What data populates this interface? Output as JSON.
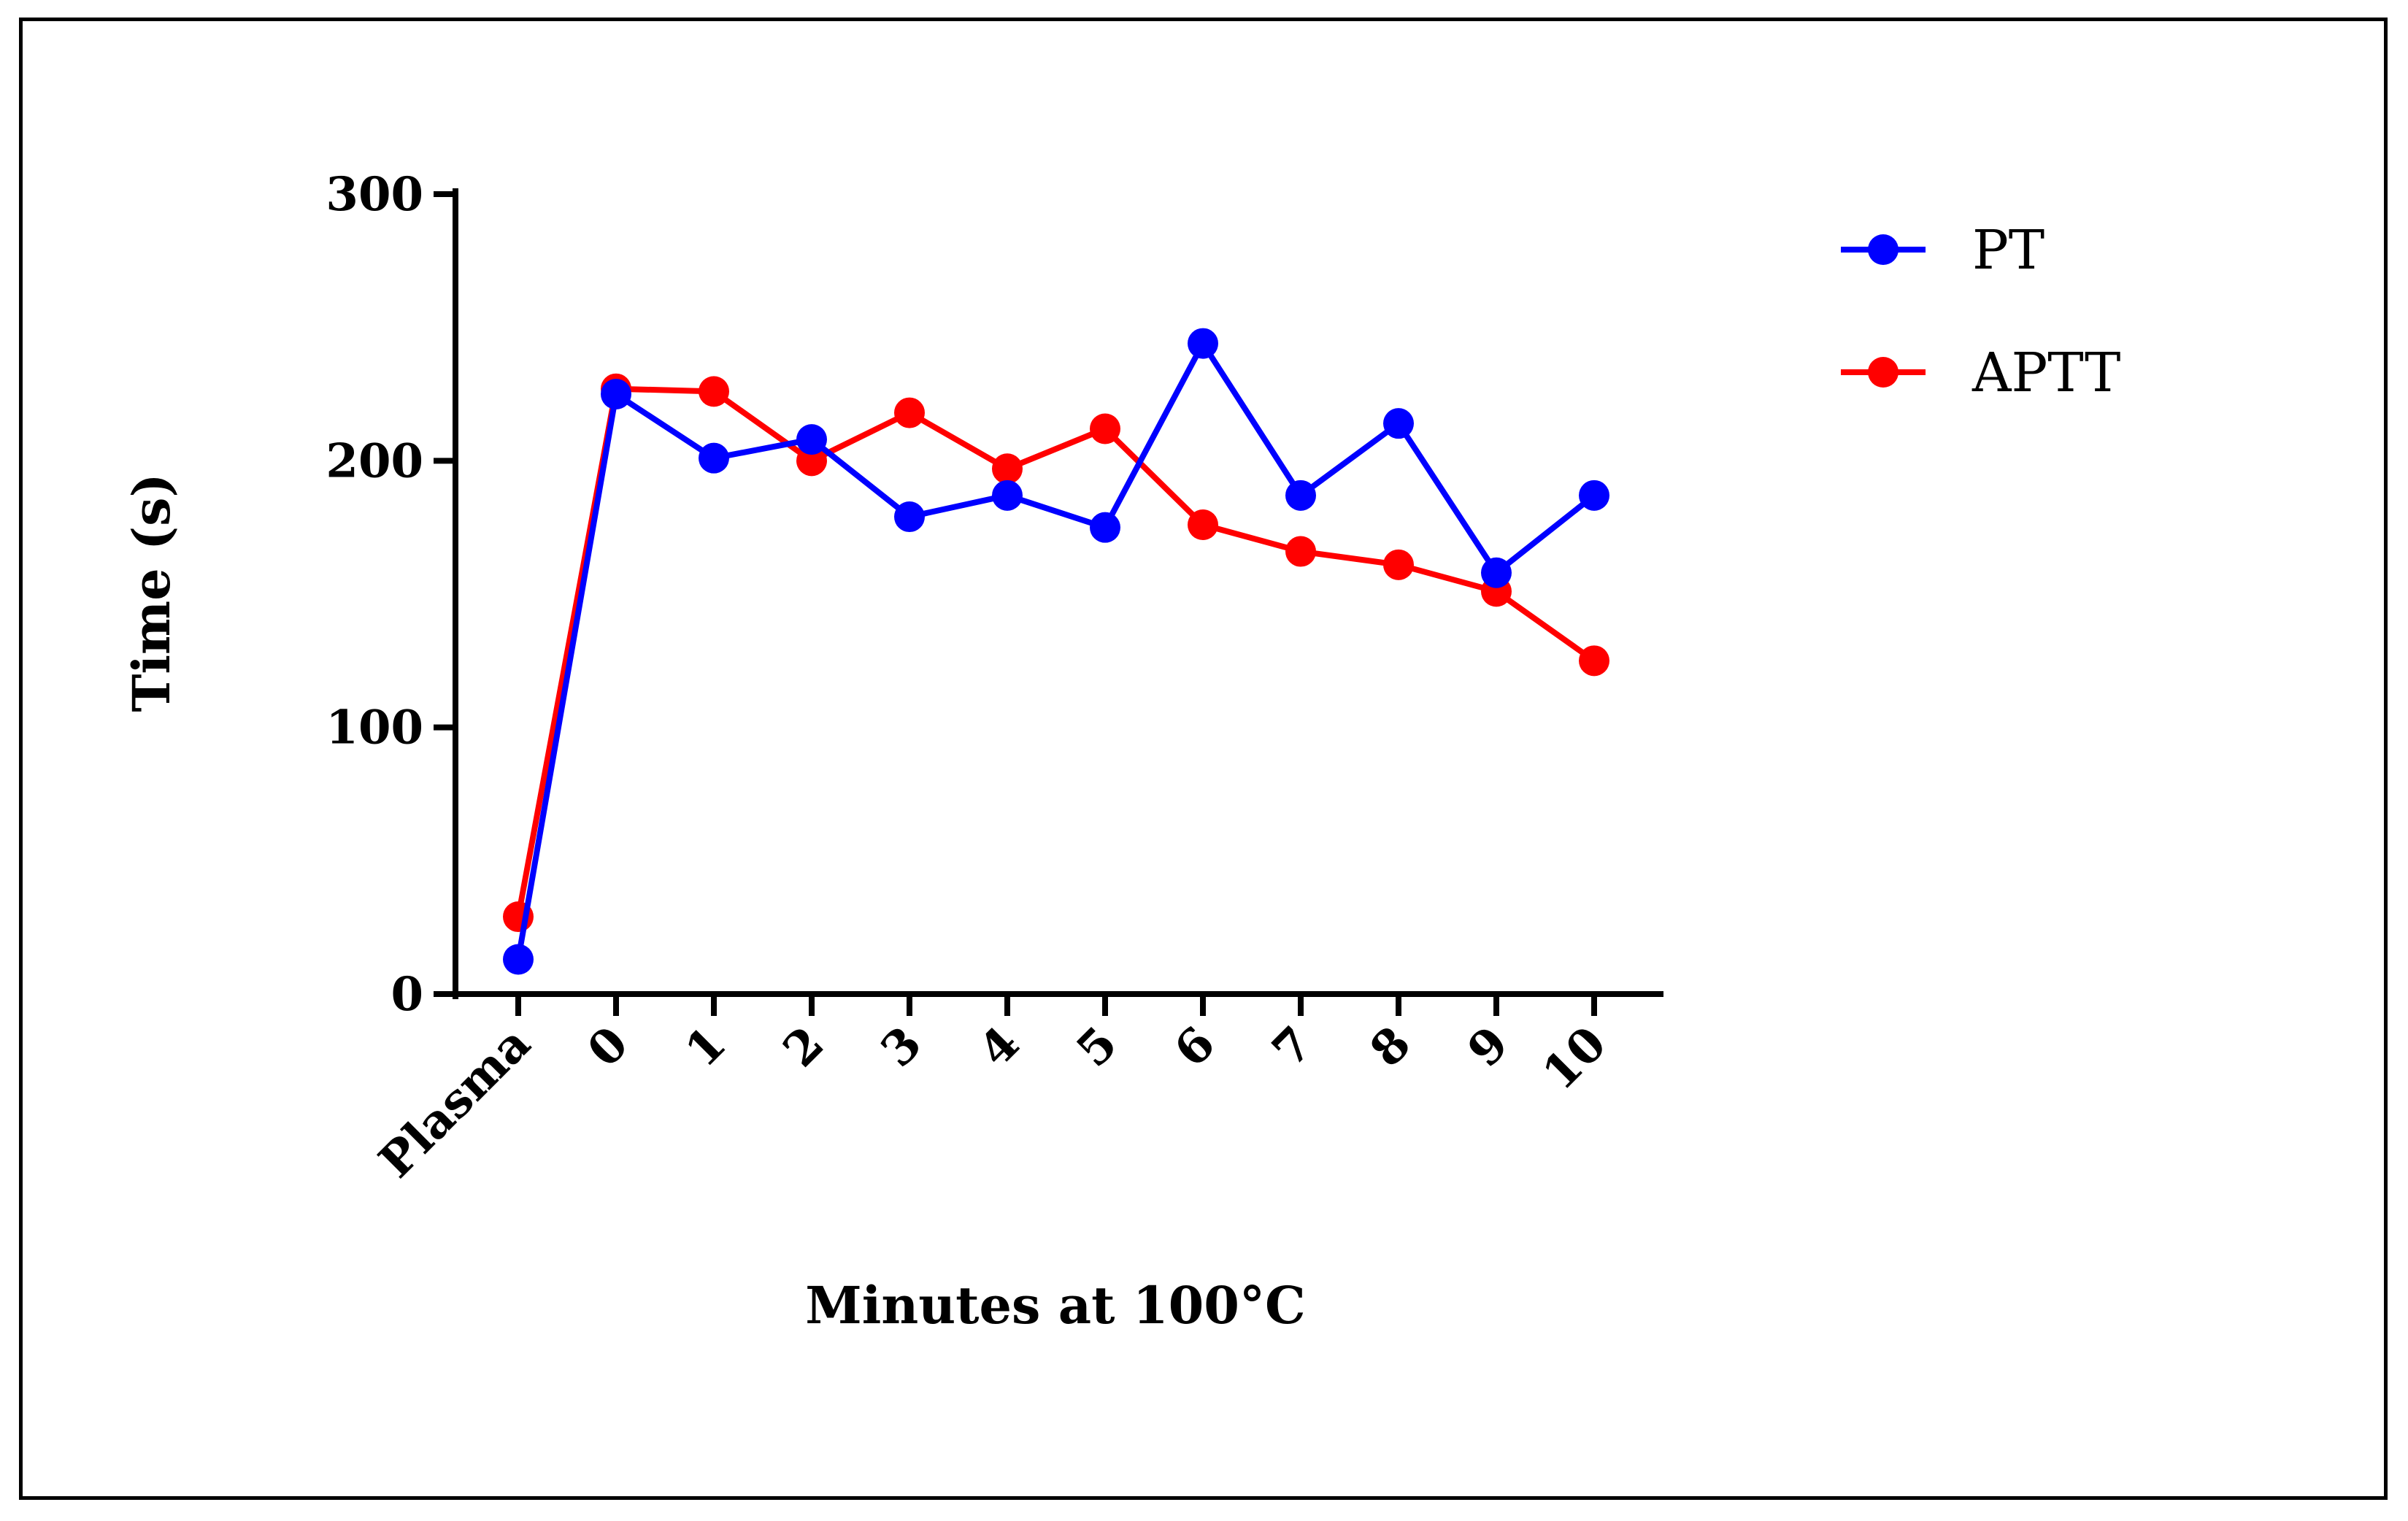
{
  "chart_data": {
    "type": "line",
    "title": "",
    "xlabel": "Minutes at 100°C",
    "ylabel": "Time (s)",
    "categories": [
      "Plasma",
      "0",
      "1",
      "2",
      "3",
      "4",
      "5",
      "6",
      "7",
      "8",
      "9",
      "10"
    ],
    "ylim": [
      0,
      300
    ],
    "yticks": [
      0,
      100,
      200,
      300
    ],
    "legend_position": "top-right",
    "grid": false,
    "series": [
      {
        "name": "PT",
        "color": "#0000ff",
        "values": [
          13,
          225,
          201,
          208,
          179,
          187,
          175,
          244,
          187,
          214,
          158,
          187
        ]
      },
      {
        "name": "APTT",
        "color": "#ff0000",
        "values": [
          29,
          227,
          226,
          200,
          218,
          197,
          212,
          176,
          166,
          161,
          151,
          125
        ]
      }
    ]
  }
}
